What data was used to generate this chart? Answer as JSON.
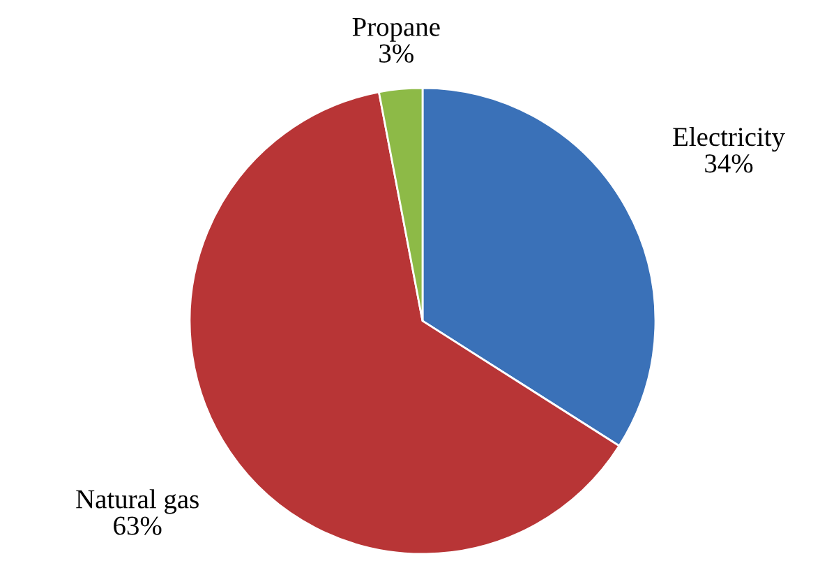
{
  "chart_data": {
    "type": "pie",
    "categories": [
      "Electricity",
      "Natural gas",
      "Propane"
    ],
    "values": [
      34,
      63,
      3
    ],
    "value_labels": [
      "34%",
      "63%",
      "3%"
    ],
    "colors": [
      "#3a71b8",
      "#b83536",
      "#8dba47"
    ]
  }
}
